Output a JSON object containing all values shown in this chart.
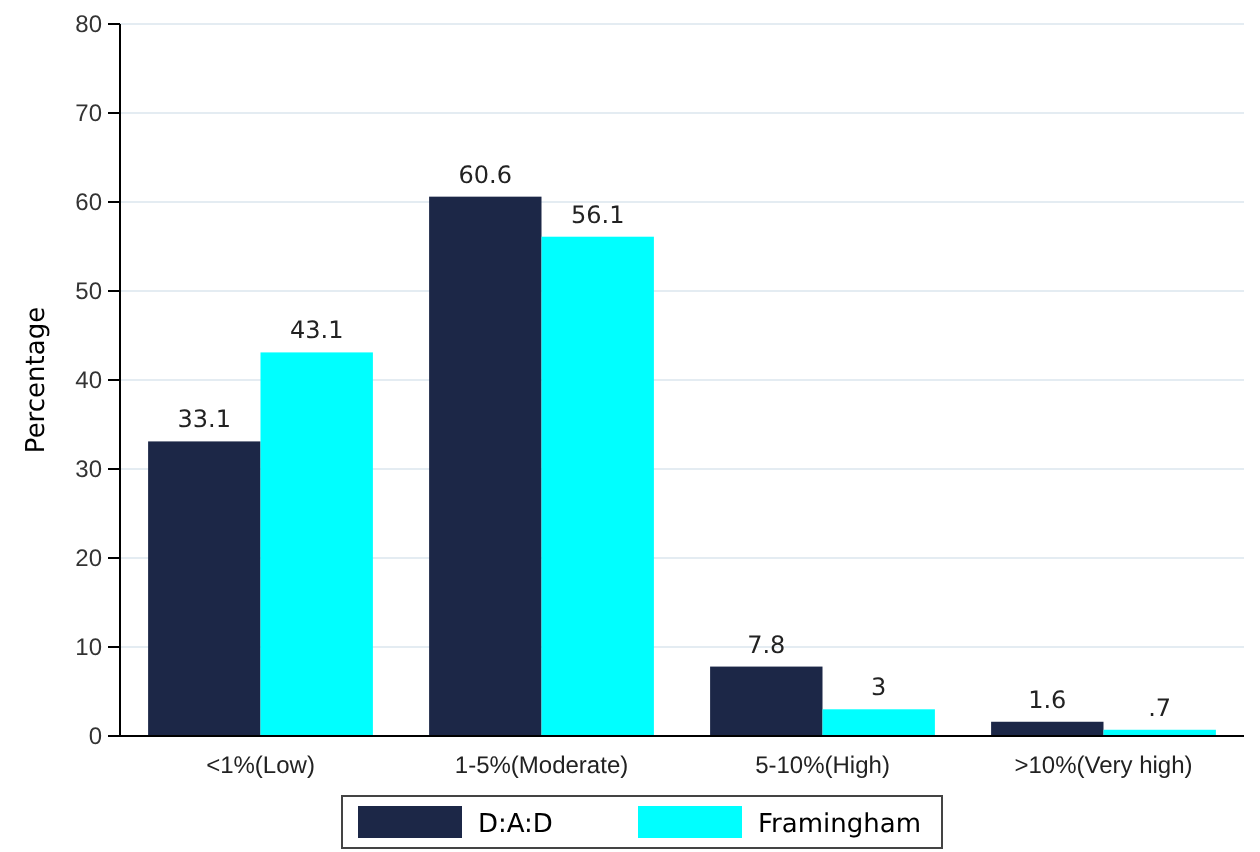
{
  "chart_data": {
    "type": "bar",
    "ylabel": "Percentage",
    "categories": [
      "<1%(Low)",
      "1-5%(Moderate)",
      "5-10%(High)",
      ">10%(Very high)"
    ],
    "series": [
      {
        "name": "D:A:D",
        "color": "#1c2747",
        "values": [
          33.1,
          60.6,
          7.8,
          1.6
        ],
        "value_labels": [
          "33.1",
          "60.6",
          "7.8",
          "1.6"
        ]
      },
      {
        "name": "Framingham",
        "color": "#00ffff",
        "values": [
          43.1,
          56.1,
          3,
          0.7
        ],
        "value_labels": [
          "43.1",
          "56.1",
          "3",
          ".7"
        ]
      }
    ],
    "ylim": [
      0,
      80
    ],
    "yticks": [
      0,
      10,
      20,
      30,
      40,
      50,
      60,
      70,
      80
    ],
    "grid": "y",
    "legend": "bottom"
  }
}
